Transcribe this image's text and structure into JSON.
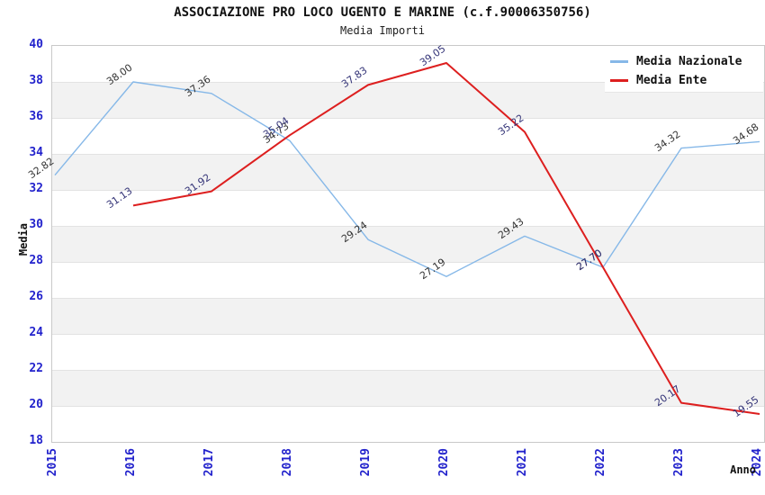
{
  "chart_data": {
    "type": "line",
    "title": "ASSOCIAZIONE PRO LOCO UGENTO E MARINE (c.f.90006350756)",
    "subtitle": "Media Importi",
    "xlabel": "Anno",
    "ylabel": "Media",
    "categories": [
      "2015",
      "2016",
      "2017",
      "2018",
      "2019",
      "2020",
      "2021",
      "2022",
      "2023",
      "2024"
    ],
    "ylim": [
      18,
      40
    ],
    "ytick_step": 2,
    "grid": "horizontal gridlines with alternating gray bands",
    "legend_position": "top-right",
    "series": [
      {
        "name": "Media Nazionale",
        "color": "#86b8e8",
        "label_color": "#333333",
        "values": [
          32.82,
          38.0,
          37.36,
          34.73,
          29.24,
          27.19,
          29.43,
          27.7,
          34.32,
          34.68
        ]
      },
      {
        "name": "Media Ente",
        "color": "#dd1f1f",
        "label_color": "#333377",
        "values": [
          null,
          31.13,
          31.92,
          35.04,
          37.83,
          39.05,
          35.22,
          27.7,
          20.17,
          19.55
        ]
      }
    ]
  },
  "colors": {
    "tick_label": "#2222cc",
    "band": "#f2f2f2",
    "gridline": "#e3e3e3",
    "plot_border": "#c9c9c9"
  }
}
